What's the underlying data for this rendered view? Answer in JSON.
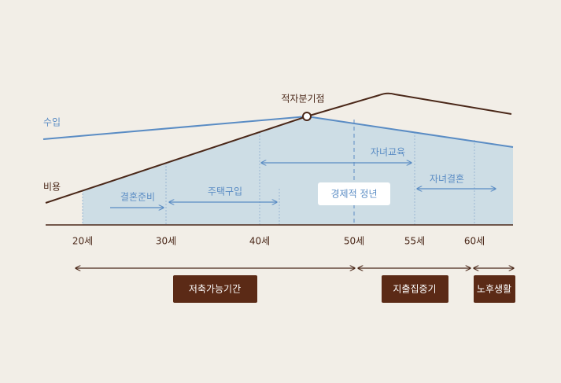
{
  "series_labels": {
    "income": "수입",
    "cost": "비용"
  },
  "break_even": "적자분기점",
  "events": {
    "marriage_prep": "결혼준비",
    "house": "주택구입",
    "education": "자녀교육",
    "child_marriage": "자녀결혼",
    "retirement": "경제적 정년"
  },
  "ages": [
    "20세",
    "30세",
    "40세",
    "50세",
    "55세",
    "60세"
  ],
  "periods": {
    "saving": "저축가능기간",
    "spending": "지출집중기",
    "retired": "노후생활"
  }
}
